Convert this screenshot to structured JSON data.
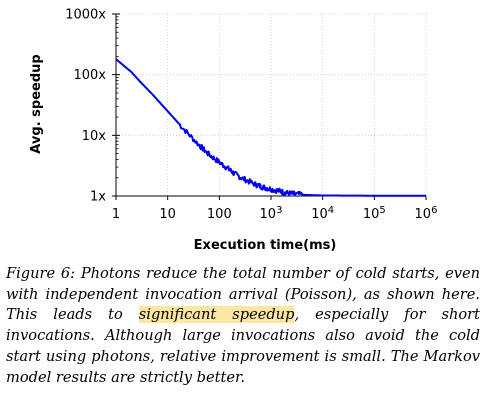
{
  "chart_data": {
    "type": "line",
    "xlabel": "Execution time(ms)",
    "ylabel": "Avg. speedup",
    "x_scale": "log",
    "y_scale": "log",
    "xlim": [
      1,
      1000000
    ],
    "ylim": [
      1,
      1000
    ],
    "x_ticks": [
      {
        "value": 1,
        "base": "1",
        "exp": ""
      },
      {
        "value": 10,
        "base": "10",
        "exp": ""
      },
      {
        "value": 100,
        "base": "100",
        "exp": ""
      },
      {
        "value": 1000,
        "base": "10",
        "exp": "3"
      },
      {
        "value": 10000,
        "base": "10",
        "exp": "4"
      },
      {
        "value": 100000,
        "base": "10",
        "exp": "5"
      },
      {
        "value": 1000000,
        "base": "10",
        "exp": "6"
      }
    ],
    "y_ticks": [
      {
        "value": 1,
        "label": "1x"
      },
      {
        "value": 10,
        "label": "10x"
      },
      {
        "value": 100,
        "label": "100x"
      },
      {
        "value": 1000,
        "label": "1000x"
      }
    ],
    "grid": true,
    "series": [
      {
        "color": "#0000ee",
        "x": [
          1,
          2,
          3,
          5,
          10,
          20,
          40,
          60,
          100,
          150,
          200,
          300,
          500,
          700,
          1000,
          1500,
          2000,
          3000,
          5000,
          10000,
          100000,
          1000000
        ],
        "y": [
          180,
          110,
          75,
          48,
          25,
          13,
          7,
          5,
          3.6,
          2.8,
          2.3,
          1.9,
          1.55,
          1.4,
          1.3,
          1.2,
          1.12,
          1.07,
          1.04,
          1.02,
          1.01,
          1.01
        ]
      }
    ]
  },
  "caption": {
    "prefix": "Figure 6: Photons reduce the total number of cold starts, even with independent invocation arrival (Poisson), as shown here. This leads to ",
    "highlight": "significant speedup",
    "suffix": ", especially for short invocations. Although large invocations also avoid the cold start using photons, relative improvement is small. The Markov model results are strictly better."
  }
}
